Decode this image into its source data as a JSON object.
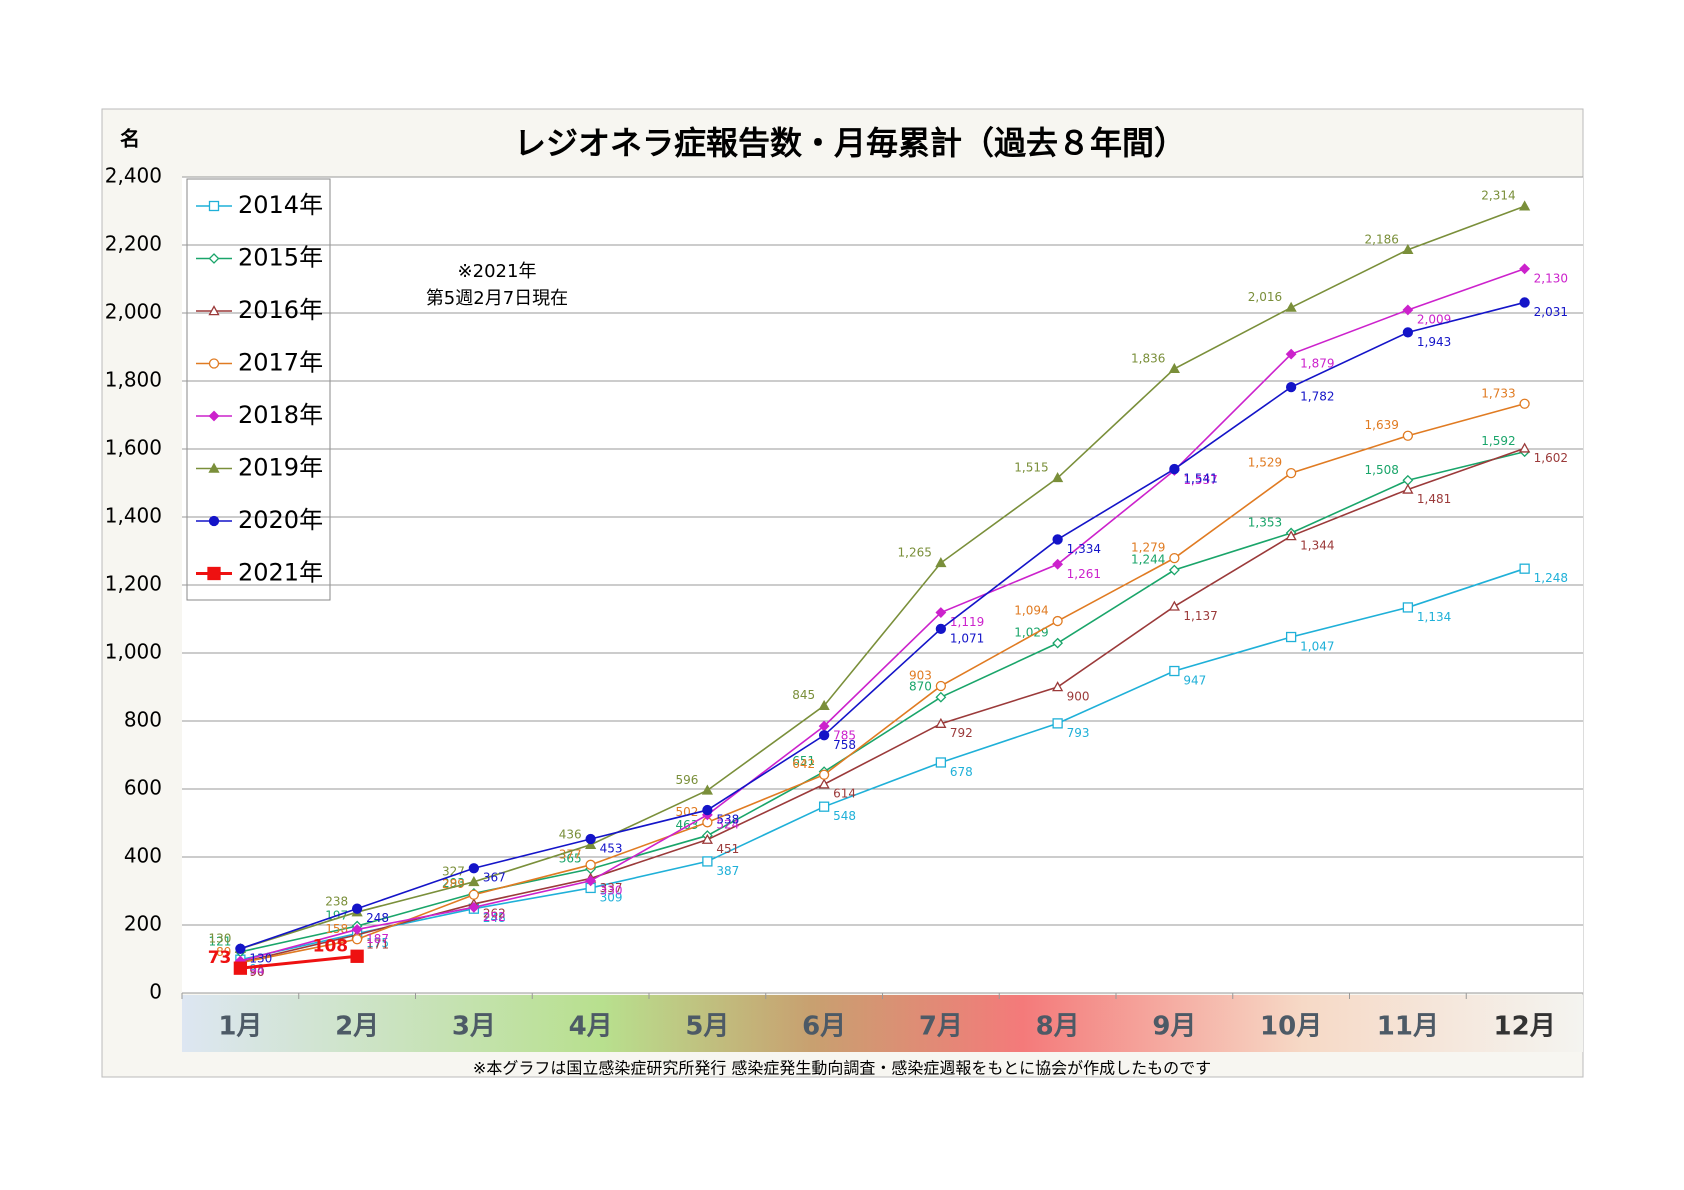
{
  "chart_data": {
    "type": "line",
    "title": "レジオネラ症報告数・月毎累計（過去８年間）",
    "y_unit": "名",
    "annotation": [
      "※2021年",
      "第5週2月7日現在"
    ],
    "footnote": "※本グラフは国立感染症研究所発行 感染症発生動向調査・感染症週報をもとに協会が作成したものです",
    "categories": [
      "1月",
      "2月",
      "3月",
      "4月",
      "5月",
      "6月",
      "7月",
      "8月",
      "9月",
      "10月",
      "11月",
      "12月"
    ],
    "ylim": [
      0,
      2400
    ],
    "yticks": [
      0,
      200,
      400,
      600,
      800,
      {
        "value": 1000,
        "label": "1,000"
      },
      {
        "value": 1200,
        "label": "1,200"
      },
      {
        "value": 1400,
        "label": "1,400"
      },
      {
        "value": 1600,
        "label": "1,600"
      },
      {
        "value": 1800,
        "label": "1,800"
      },
      {
        "value": 2000,
        "label": "2,000"
      },
      {
        "value": 2200,
        "label": "2,200"
      },
      {
        "value": 2400,
        "label": "2,400"
      }
    ],
    "grid": true,
    "legend": "upper left",
    "series": [
      {
        "name": "2014年",
        "color": "#1fb0d8",
        "marker": "square-open",
        "values": [
          98,
          175,
          248,
          309,
          387,
          548,
          678,
          793,
          947,
          1047,
          1134,
          1248
        ],
        "value_labels": [
          "98",
          "175",
          "248",
          "309",
          "387",
          "548",
          "678",
          "793",
          "947",
          "1,047",
          "1,134",
          "1,248"
        ]
      },
      {
        "name": "2015年",
        "color": "#1aa56a",
        "marker": "diamond-open",
        "values": [
          121,
          197,
          293,
          365,
          463,
          651,
          870,
          1029,
          1244,
          1353,
          1508,
          1592
        ],
        "value_labels": [
          "121",
          "197",
          "293",
          "365",
          "463",
          "651",
          "870",
          "1,029",
          "1,244",
          "1,353",
          "1,508",
          "1,592"
        ]
      },
      {
        "name": "2016年",
        "color": "#9b3a3a",
        "marker": "triangle-open",
        "values": [
          90,
          171,
          262,
          337,
          451,
          614,
          792,
          900,
          1137,
          1344,
          1481,
          1602
        ],
        "value_labels": [
          "90",
          "171",
          "262",
          "337",
          "451",
          "614",
          "792",
          "900",
          "1,137",
          "1,344",
          "1,481",
          "1,602"
        ]
      },
      {
        "name": "2017年",
        "color": "#e07b22",
        "marker": "circle-open",
        "values": [
          89,
          158,
          289,
          377,
          502,
          642,
          903,
          1094,
          1279,
          1529,
          1639,
          1733
        ],
        "value_labels": [
          "89",
          "158",
          "289",
          "377",
          "502",
          "642",
          "903",
          "1,094",
          "1,279",
          "1,529",
          "1,639",
          "1,733"
        ]
      },
      {
        "name": "2018年",
        "color": "#cc22cc",
        "marker": "diamond",
        "values": [
          94,
          187,
          252,
          330,
          524,
          785,
          1119,
          1261,
          1537,
          1879,
          2009,
          2130
        ],
        "value_labels": [
          "94",
          "187",
          "252",
          "330",
          "524",
          "785",
          "1,119",
          "1,261",
          "1,537",
          "1,879",
          "2,009",
          "2,130"
        ]
      },
      {
        "name": "2019年",
        "color": "#7a8f3a",
        "marker": "triangle",
        "values": [
          130,
          238,
          327,
          436,
          596,
          845,
          1265,
          1515,
          1836,
          2016,
          2186,
          2314
        ],
        "value_labels": [
          "130",
          "238",
          "327",
          "436",
          "596",
          "845",
          "1,265",
          "1,515",
          "1,836",
          "2,016",
          "2,186",
          "2,314"
        ]
      },
      {
        "name": "2020年",
        "color": "#1414c8",
        "marker": "circle",
        "values": [
          130,
          248,
          367,
          453,
          538,
          758,
          1071,
          1334,
          1541,
          1782,
          1943,
          2031
        ],
        "value_labels": [
          "130",
          "248",
          "367",
          "453",
          "538",
          "758",
          "1,071",
          "1,334",
          "1,541",
          "1,782",
          "1,943",
          "2,031"
        ]
      },
      {
        "name": "2021年",
        "color": "#ee1111",
        "marker": "square",
        "values": [
          73,
          108,
          null,
          null,
          null,
          null,
          null,
          null,
          null,
          null,
          null,
          null
        ],
        "value_labels": [
          "73",
          "108",
          null,
          null,
          null,
          null,
          null,
          null,
          null,
          null,
          null,
          null
        ]
      }
    ]
  }
}
